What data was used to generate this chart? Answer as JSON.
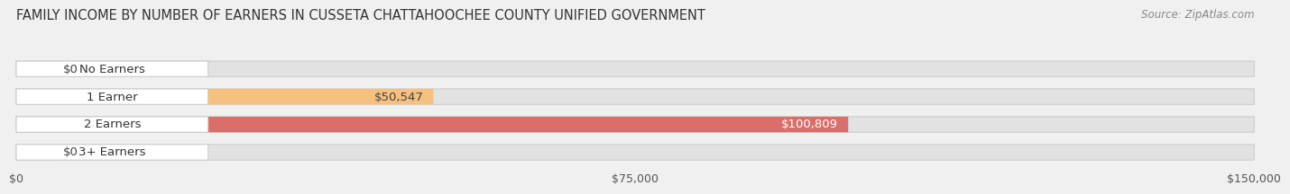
{
  "title": "FAMILY INCOME BY NUMBER OF EARNERS IN CUSSETA CHATTAHOOCHEE COUNTY UNIFIED GOVERNMENT",
  "source": "Source: ZipAtlas.com",
  "categories": [
    "No Earners",
    "1 Earner",
    "2 Earners",
    "3+ Earners"
  ],
  "values": [
    0,
    50547,
    100809,
    0
  ],
  "bar_colors": [
    "#f4a0b0",
    "#f5c080",
    "#d96f6a",
    "#a8c8e8"
  ],
  "label_colors": [
    "#444444",
    "#444444",
    "#ffffff",
    "#444444"
  ],
  "value_labels": [
    "$0",
    "$50,547",
    "$100,809",
    "$0"
  ],
  "xlim_max": 150000,
  "xticks": [
    0,
    75000,
    150000
  ],
  "xtick_labels": [
    "$0",
    "$75,000",
    "$150,000"
  ],
  "background_color": "#f0f0f0",
  "bar_background_color": "#e2e2e2",
  "title_fontsize": 10.5,
  "bar_height": 0.56,
  "bar_label_fontsize": 9.5,
  "tick_fontsize": 9,
  "source_fontsize": 8.5
}
